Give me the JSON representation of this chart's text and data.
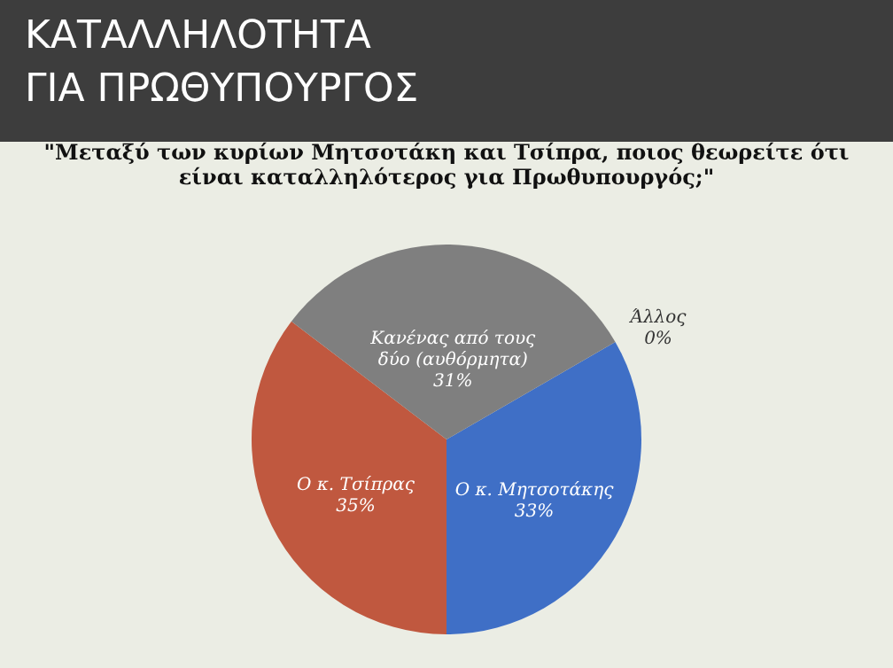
{
  "chart_data": {
    "type": "pie",
    "title": "ΚΑΤΑΛΛΗΛΟΤΗΤΑ ΓΙΑ ΠΡΩΘΥΠΟΥΡΓΟΣ",
    "subtitle": "\"Μεταξύ των κυρίων Μητσοτάκη και Τσίπρα, ποιος θεωρείτε ότι είναι καταλληλότερος για Πρωθυπουργός;\"",
    "categories": [
      "Ο κ. Μητσοτάκης",
      "Ο κ. Τσίπρας",
      "Κανένας από τους δύο (αυθόρμητα)",
      "Άλλος"
    ],
    "values": [
      33,
      35,
      31,
      0
    ],
    "value_labels": [
      "33%",
      "35%",
      "31%",
      "0%"
    ],
    "colors": [
      "#3f6fc6",
      "#c0583f",
      "#7f7f7f",
      "#e0a030"
    ],
    "legend": false
  }
}
